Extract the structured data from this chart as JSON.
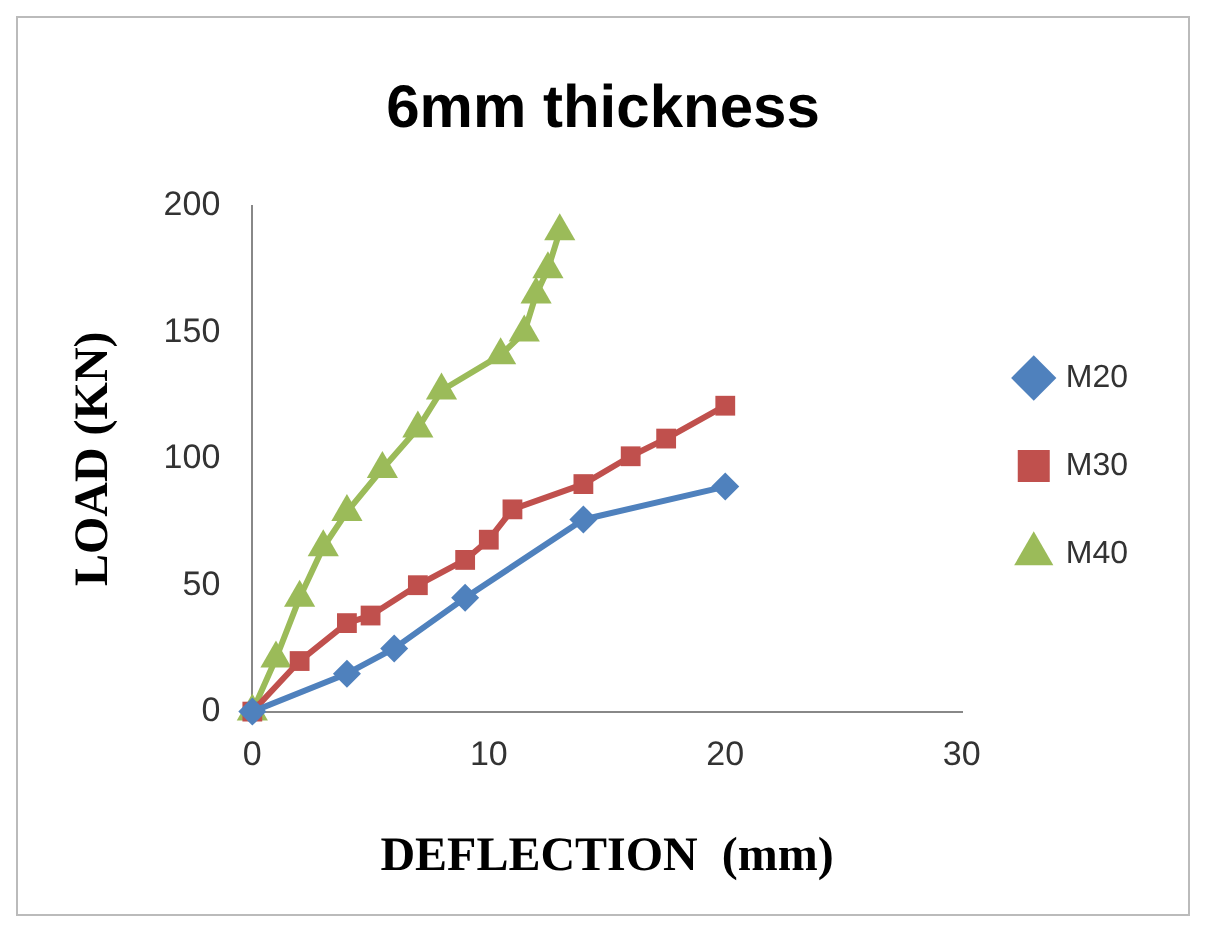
{
  "chart_data": {
    "type": "line",
    "title": "6mm thickness",
    "xlabel": "DEFLECTION  (mm)",
    "ylabel": "LOAD (KN)",
    "xlim": [
      0,
      30
    ],
    "xticks": [
      0,
      10,
      20,
      30
    ],
    "ylim": [
      0,
      200
    ],
    "yticks": [
      0,
      50,
      100,
      150,
      200
    ],
    "grid": false,
    "legend": "right",
    "series": [
      {
        "name": "M20",
        "color": "#4f81bd",
        "marker": "diamond",
        "x": [
          0,
          4,
          6,
          9,
          14,
          20
        ],
        "values": [
          0,
          15,
          25,
          45,
          76,
          89
        ]
      },
      {
        "name": "M30",
        "color": "#c0504d",
        "marker": "square",
        "x": [
          0,
          2,
          4,
          5,
          7,
          9,
          10,
          11,
          14,
          16,
          17.5,
          20
        ],
        "values": [
          0,
          20,
          35,
          38,
          50,
          60,
          68,
          80,
          90,
          101,
          108,
          121
        ]
      },
      {
        "name": "M40",
        "color": "#9bbb59",
        "marker": "triangle",
        "x": [
          0,
          1,
          2,
          3,
          4,
          5.5,
          7,
          8,
          10.5,
          11.5,
          12,
          12.5,
          13
        ],
        "values": [
          0,
          21,
          45,
          65,
          79,
          96,
          112,
          127,
          141,
          150,
          165,
          175,
          190
        ]
      }
    ]
  }
}
